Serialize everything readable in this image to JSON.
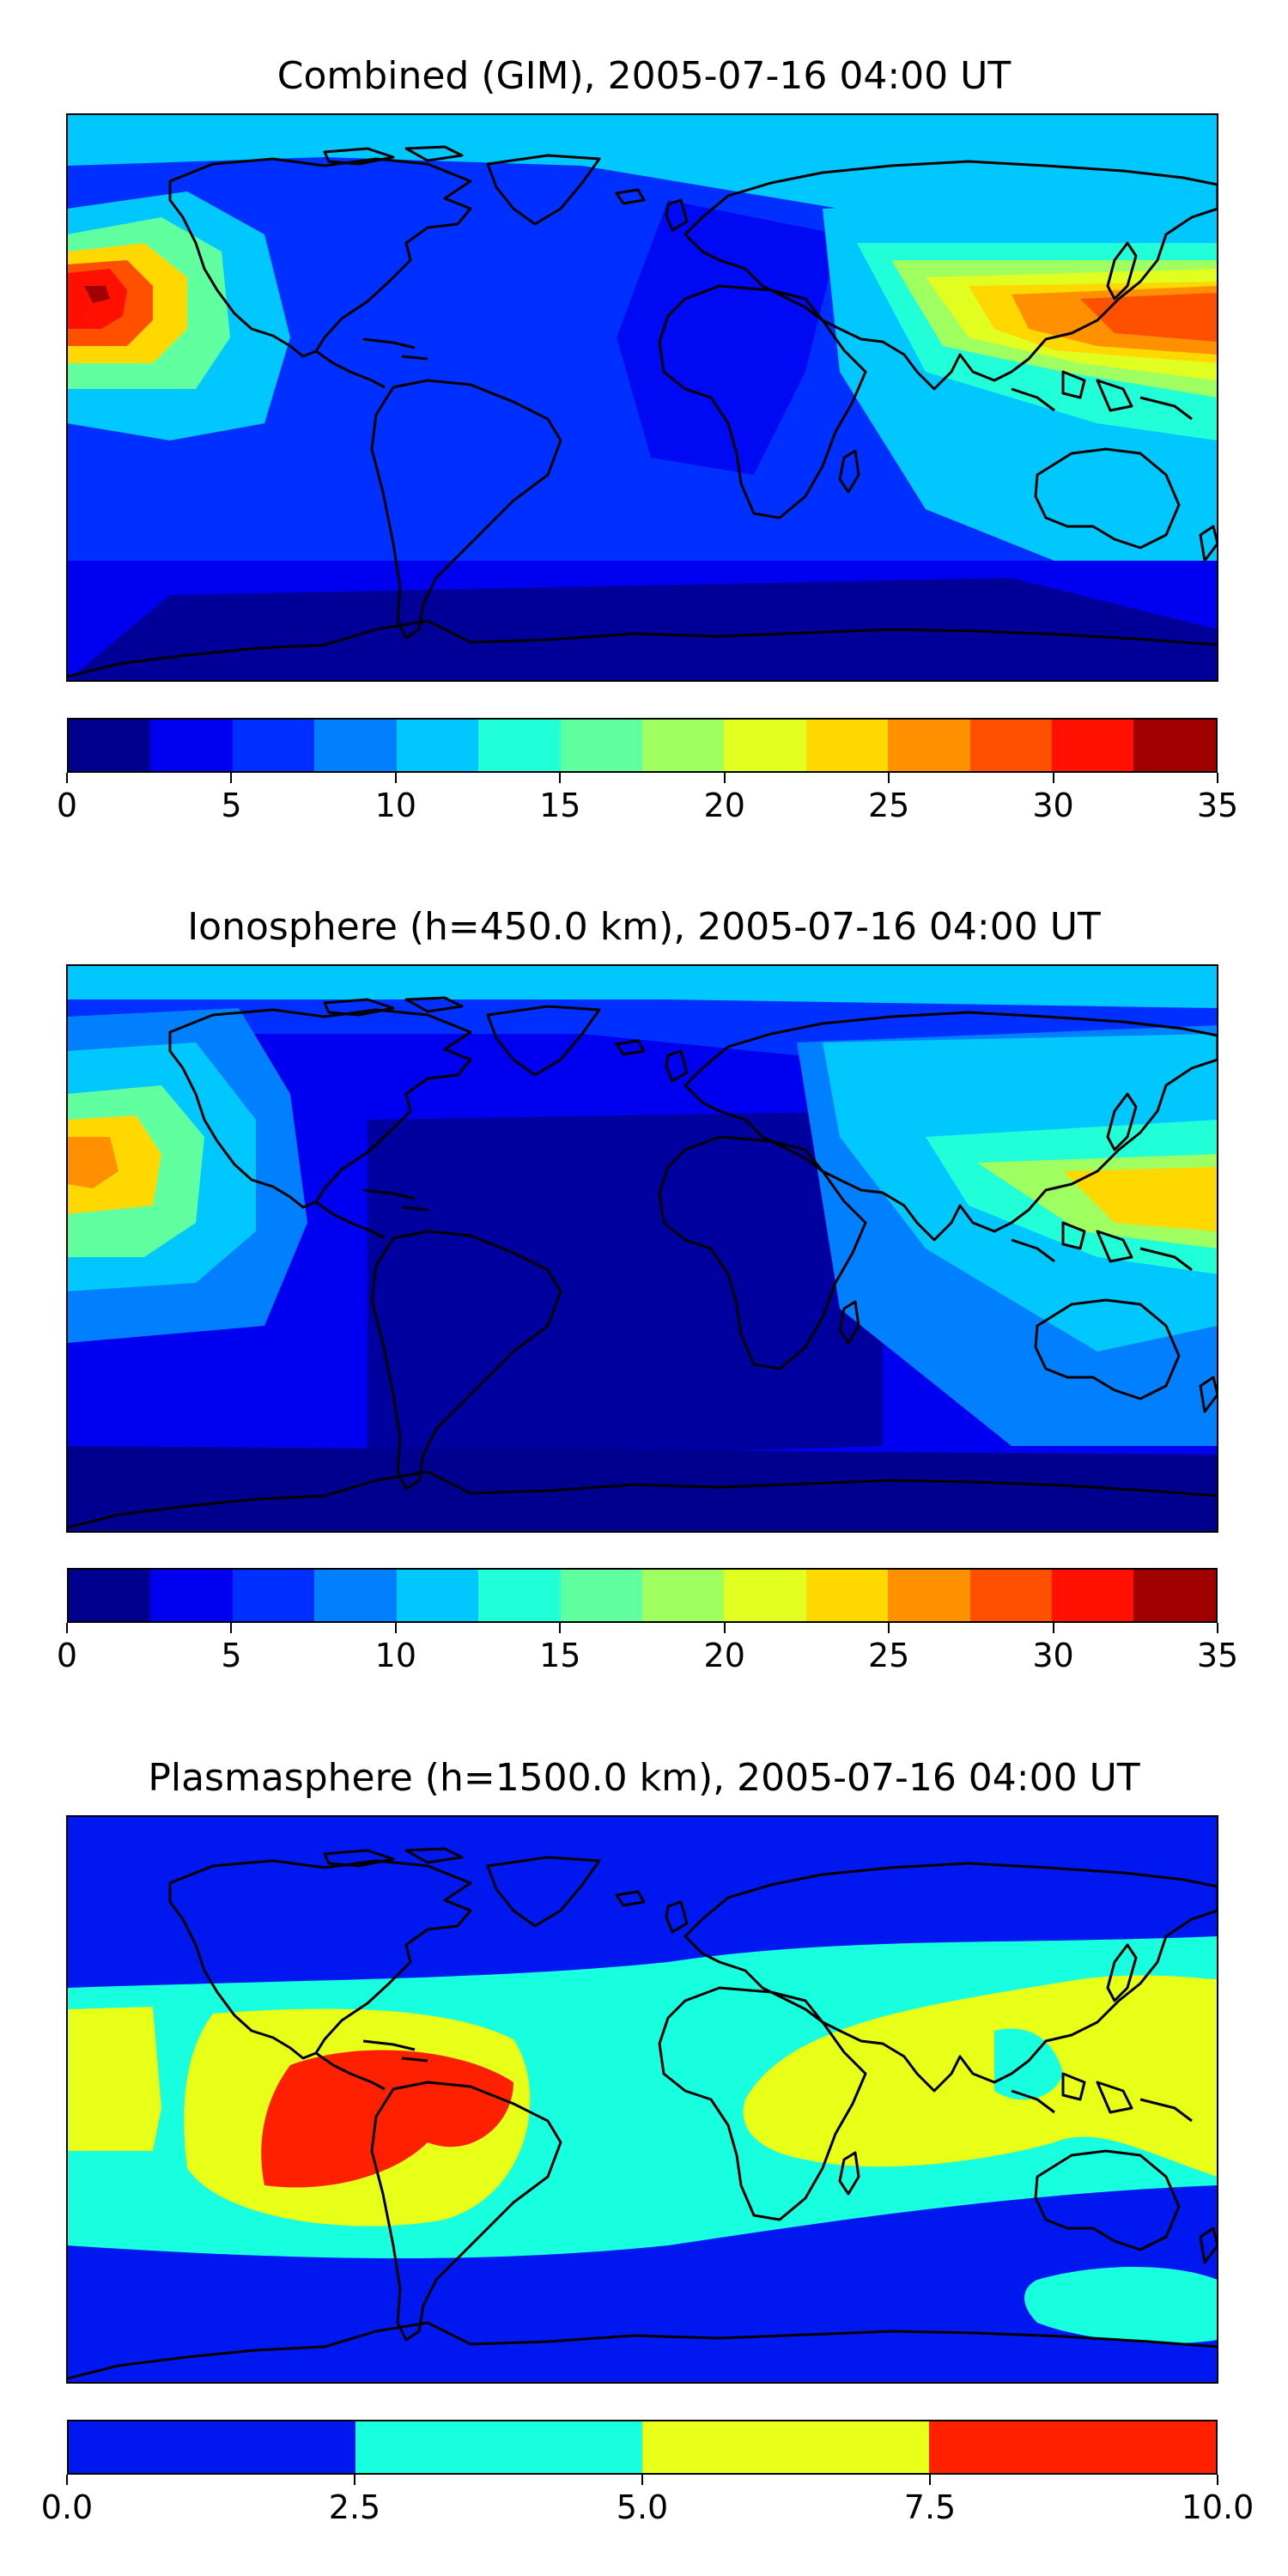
{
  "panels": [
    {
      "title": "Combined (GIM), 2005-07-16 04:00 UT",
      "colorbar": {
        "colors": [
          "#00008f",
          "#0000f0",
          "#0030ff",
          "#0080ff",
          "#00c8ff",
          "#20ffd8",
          "#60ffa0",
          "#a0ff60",
          "#e0ff20",
          "#ffd800",
          "#ff9000",
          "#ff5000",
          "#ff1000",
          "#a00000"
        ],
        "tick_labels": [
          "0",
          "5",
          "10",
          "15",
          "20",
          "25",
          "30",
          "35"
        ],
        "tick_values": [
          0,
          5,
          10,
          15,
          20,
          25,
          30,
          35
        ],
        "range": [
          0,
          35
        ]
      }
    },
    {
      "title": "Ionosphere  (h=450.0 km), 2005-07-16 04:00 UT",
      "colorbar": {
        "colors": [
          "#00008f",
          "#0000f0",
          "#0030ff",
          "#0080ff",
          "#00c8ff",
          "#20ffd8",
          "#60ffa0",
          "#a0ff60",
          "#e0ff20",
          "#ffd800",
          "#ff9000",
          "#ff5000",
          "#ff1000",
          "#a00000"
        ],
        "tick_labels": [
          "0",
          "5",
          "10",
          "15",
          "20",
          "25",
          "30",
          "35"
        ],
        "tick_values": [
          0,
          5,
          10,
          15,
          20,
          25,
          30,
          35
        ],
        "range": [
          0,
          35
        ]
      }
    },
    {
      "title": "Plasmasphere (h=1500.0 km), 2005-07-16 04:00 UT",
      "colorbar": {
        "colors": [
          "#0018f0",
          "#18ffe0",
          "#e8ff18",
          "#ff2000"
        ],
        "tick_labels": [
          "0.0",
          "2.5",
          "5.0",
          "7.5",
          "10.0"
        ],
        "tick_values": [
          0,
          2.5,
          5,
          7.5,
          10
        ],
        "range": [
          0,
          10
        ]
      }
    }
  ]
}
